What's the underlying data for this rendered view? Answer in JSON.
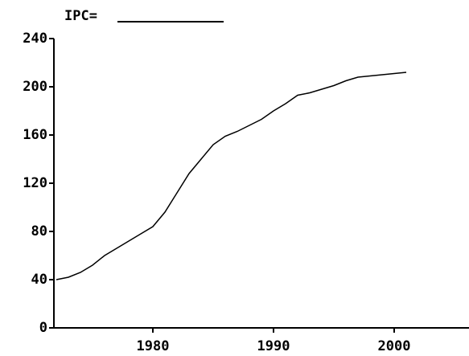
{
  "chart_data": {
    "type": "line",
    "title": "IPC=",
    "x": [
      1972,
      1973,
      1974,
      1975,
      1976,
      1977,
      1978,
      1979,
      1980,
      1981,
      1982,
      1983,
      1984,
      1985,
      1986,
      1987,
      1988,
      1989,
      1990,
      1991,
      1992,
      1993,
      1994,
      1995,
      1996,
      1997,
      1998,
      1999,
      2000,
      2001
    ],
    "series": [
      {
        "name": "IPC",
        "color": "#000000",
        "values": [
          40,
          42,
          46,
          52,
          60,
          66,
          72,
          78,
          84,
          96,
          112,
          128,
          140,
          152,
          159,
          163,
          168,
          173,
          180,
          186,
          193,
          195,
          198,
          201,
          205,
          208,
          209,
          210,
          211,
          212
        ]
      }
    ],
    "xlim": [
      1971.8,
      2006.2
    ],
    "xticks": [
      1980,
      1990,
      2000
    ],
    "ylim": [
      0,
      240
    ],
    "yticks": [
      0,
      40,
      80,
      120,
      160,
      200,
      240
    ],
    "grid": false,
    "legend": false
  }
}
